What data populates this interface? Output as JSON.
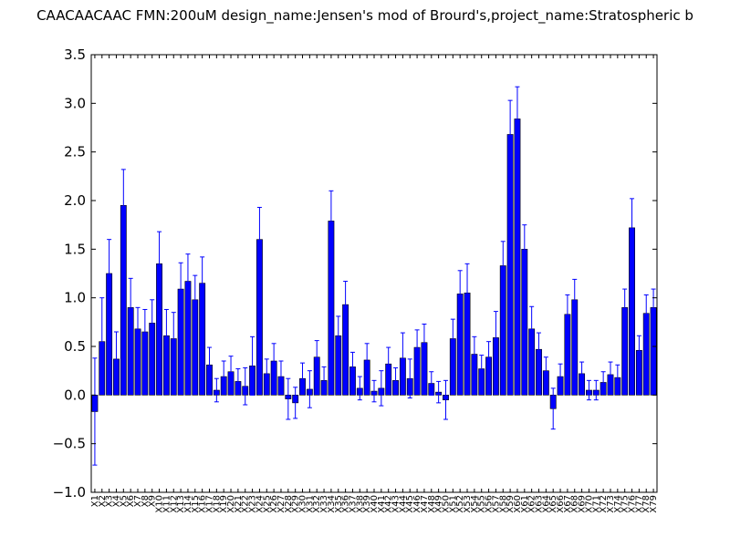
{
  "chart_data": {
    "type": "bar",
    "title": "CAACAACAAC  FMN:200uM  design_name:Jensen's mod of Brourd's,project_name:Stratospheric b",
    "xlabel": "",
    "ylabel": "",
    "ylim": [
      -1.0,
      3.5
    ],
    "yticks": [
      "−1.0",
      "−0.5",
      "0.0",
      "0.5",
      "1.0",
      "1.5",
      "2.0",
      "2.5",
      "3.0",
      "3.5"
    ],
    "ytick_values": [
      -1.0,
      -0.5,
      0.0,
      0.5,
      1.0,
      1.5,
      2.0,
      2.5,
      3.0,
      3.5
    ],
    "grid": false,
    "colors": {
      "bar": "#0000ff",
      "bar_edge": "#000000",
      "error": "#0000ff"
    },
    "categories": [
      "X1",
      "X2",
      "X3",
      "X4",
      "X5",
      "X6",
      "X7",
      "X8",
      "X9",
      "X10",
      "X11",
      "X12",
      "X13",
      "X14",
      "X15",
      "X16",
      "X17",
      "X18",
      "X19",
      "X20",
      "X21",
      "X22",
      "X23",
      "X24",
      "X25",
      "X26",
      "X27",
      "X28",
      "X29",
      "X30",
      "X31",
      "X32",
      "X33",
      "X34",
      "X35",
      "X36",
      "X37",
      "X38",
      "X39",
      "X40",
      "X41",
      "X42",
      "X43",
      "X44",
      "X45",
      "X46",
      "X47",
      "X48",
      "X49",
      "X50",
      "X51",
      "X52",
      "X53",
      "X54",
      "X55",
      "X56",
      "X57",
      "X58",
      "X59",
      "X60",
      "X61",
      "X62",
      "X63",
      "X64",
      "X65",
      "X66",
      "X67",
      "X68",
      "X69",
      "X70",
      "X71",
      "X72",
      "X73",
      "X74",
      "X75",
      "X76",
      "X77",
      "X78",
      "X79"
    ],
    "values": [
      -0.17,
      0.55,
      1.25,
      0.37,
      1.95,
      0.9,
      0.68,
      0.65,
      0.74,
      1.35,
      0.61,
      0.58,
      1.09,
      1.17,
      0.98,
      1.15,
      0.31,
      0.05,
      0.19,
      0.24,
      0.14,
      0.09,
      0.3,
      1.6,
      0.22,
      0.35,
      0.19,
      -0.04,
      -0.08,
      0.17,
      0.06,
      0.39,
      0.15,
      1.79,
      0.61,
      0.93,
      0.29,
      0.07,
      0.36,
      0.04,
      0.07,
      0.32,
      0.15,
      0.38,
      0.17,
      0.49,
      0.54,
      0.12,
      0.03,
      -0.05,
      0.58,
      1.04,
      1.05,
      0.42,
      0.27,
      0.39,
      0.59,
      1.33,
      2.68,
      2.84,
      1.5,
      0.68,
      0.47,
      0.25,
      -0.14,
      0.19,
      0.83,
      0.98,
      0.22,
      0.05,
      0.05,
      0.13,
      0.21,
      0.18,
      0.9,
      1.72,
      0.46,
      0.84,
      0.9
    ],
    "errors": [
      0.55,
      0.45,
      0.35,
      0.28,
      0.37,
      0.3,
      0.22,
      0.23,
      0.24,
      0.33,
      0.27,
      0.27,
      0.27,
      0.28,
      0.25,
      0.27,
      0.18,
      0.12,
      0.16,
      0.16,
      0.13,
      0.19,
      0.3,
      0.33,
      0.15,
      0.18,
      0.16,
      0.21,
      0.16,
      0.16,
      0.19,
      0.17,
      0.14,
      0.31,
      0.2,
      0.24,
      0.15,
      0.12,
      0.17,
      0.11,
      0.18,
      0.17,
      0.13,
      0.26,
      0.2,
      0.18,
      0.19,
      0.12,
      0.11,
      0.2,
      0.2,
      0.24,
      0.3,
      0.18,
      0.14,
      0.16,
      0.27,
      0.25,
      0.35,
      0.33,
      0.25,
      0.23,
      0.17,
      0.14,
      0.21,
      0.13,
      0.2,
      0.21,
      0.12,
      0.1,
      0.1,
      0.11,
      0.13,
      0.13,
      0.19,
      0.3,
      0.15,
      0.19,
      0.19
    ]
  }
}
